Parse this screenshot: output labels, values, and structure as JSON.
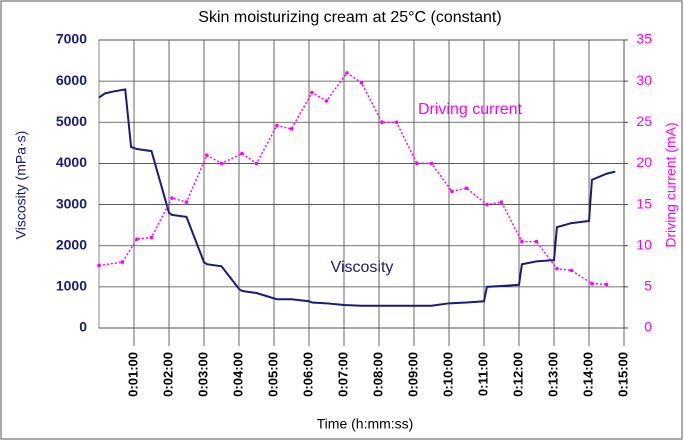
{
  "chart_data": {
    "type": "line",
    "title": "Skin moisturizing cream at 25°C (constant)",
    "xlabel": "Time (h:mm:ss)",
    "ylabel": "Viscosity (mPa·s)",
    "y2label": "Driving current (mA)",
    "annotations": [
      "Driving current",
      "Viscosity"
    ],
    "xlim": [
      0,
      900
    ],
    "xticks": [
      {
        "value": 60,
        "label": "0:01:00"
      },
      {
        "value": 120,
        "label": "0:02:00"
      },
      {
        "value": 180,
        "label": "0:03:00"
      },
      {
        "value": 240,
        "label": "0:04:00"
      },
      {
        "value": 300,
        "label": "0:05:00"
      },
      {
        "value": 360,
        "label": "0:06:00"
      },
      {
        "value": 420,
        "label": "0:07:00"
      },
      {
        "value": 480,
        "label": "0:08:00"
      },
      {
        "value": 540,
        "label": "0:09:00"
      },
      {
        "value": 600,
        "label": "0:10:00"
      },
      {
        "value": 660,
        "label": "0:11:00"
      },
      {
        "value": 720,
        "label": "0:12:00"
      },
      {
        "value": 780,
        "label": "0:13:00"
      },
      {
        "value": 840,
        "label": "0:14:00"
      },
      {
        "value": 900,
        "label": "0:15:00"
      }
    ],
    "ylim": [
      0,
      7000
    ],
    "yticks": [
      0,
      1000,
      2000,
      3000,
      4000,
      5000,
      6000,
      7000
    ],
    "y2lim": [
      0,
      35
    ],
    "y2ticks": [
      0,
      5,
      10,
      15,
      20,
      25,
      30,
      35
    ],
    "grid": true,
    "series": [
      {
        "name": "Viscosity",
        "color": "#1a1a7a",
        "x": [
          0,
          10,
          25,
          45,
          55,
          65,
          90,
          120,
          125,
          150,
          180,
          185,
          210,
          240,
          245,
          270,
          300,
          305,
          330,
          360,
          365,
          390,
          420,
          450,
          480,
          510,
          540,
          570,
          600,
          630,
          660,
          665,
          690,
          720,
          725,
          750,
          780,
          785,
          810,
          840,
          845,
          870,
          885
        ],
        "values": [
          5600,
          5700,
          5750,
          5800,
          4400,
          4350,
          4300,
          2800,
          2750,
          2700,
          1600,
          1550,
          1500,
          950,
          900,
          850,
          720,
          700,
          700,
          650,
          620,
          600,
          560,
          540,
          540,
          540,
          540,
          540,
          600,
          620,
          650,
          1000,
          1020,
          1050,
          1550,
          1620,
          1650,
          2450,
          2550,
          2600,
          3600,
          3750,
          3800
        ]
      },
      {
        "name": "Driving current",
        "color": "#ff00ff",
        "axis": "y2",
        "x": [
          0,
          40,
          65,
          90,
          125,
          150,
          185,
          210,
          245,
          270,
          305,
          330,
          365,
          390,
          425,
          450,
          485,
          510,
          545,
          570,
          605,
          630,
          665,
          690,
          725,
          750,
          785,
          810,
          845,
          870
        ],
        "values": [
          7.6,
          8.0,
          10.8,
          11.0,
          15.8,
          15.3,
          21,
          20,
          21.2,
          20,
          24.6,
          24.2,
          28.6,
          27.6,
          31,
          29.8,
          25,
          25,
          20,
          20,
          16.6,
          17,
          15,
          15.3,
          10.5,
          10.5,
          7.2,
          7.0,
          5.4,
          5.3
        ]
      }
    ]
  }
}
